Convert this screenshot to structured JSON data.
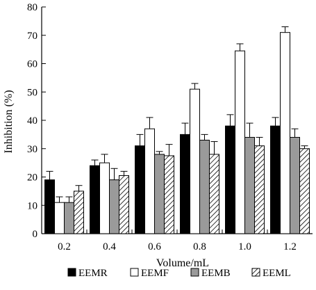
{
  "chart_data": {
    "type": "bar",
    "title": "",
    "xlabel": "Volume/mL",
    "ylabel": "Inhibition (%)",
    "ylim": [
      0,
      80
    ],
    "yticks": [
      0,
      10,
      20,
      30,
      40,
      50,
      60,
      70,
      80
    ],
    "categories": [
      "0.2",
      "0.4",
      "0.6",
      "0.8",
      "1.0",
      "1.2"
    ],
    "series": [
      {
        "name": "EEMR",
        "fill": "black",
        "values": [
          19,
          24,
          31,
          35,
          38,
          38
        ],
        "errors": [
          3,
          2,
          4,
          4,
          4,
          3
        ]
      },
      {
        "name": "EEMF",
        "fill": "white",
        "values": [
          11,
          25,
          37,
          51,
          64.5,
          71
        ],
        "errors": [
          2,
          3,
          4,
          2,
          2.5,
          2
        ]
      },
      {
        "name": "EEMB",
        "fill": "gray",
        "values": [
          11,
          19,
          28,
          33,
          34,
          34
        ],
        "errors": [
          2,
          4,
          1,
          2,
          5,
          3
        ]
      },
      {
        "name": "EEML",
        "fill": "hatched",
        "values": [
          15,
          20.5,
          27.5,
          28,
          31,
          30
        ],
        "errors": [
          2,
          1.5,
          4,
          4.5,
          3,
          1
        ]
      }
    ],
    "legend_position": "bottom",
    "grid": false,
    "colors": {
      "black": "#000000",
      "white": "#ffffff",
      "gray": "#9a9a9a",
      "hatch": "#000000"
    }
  }
}
